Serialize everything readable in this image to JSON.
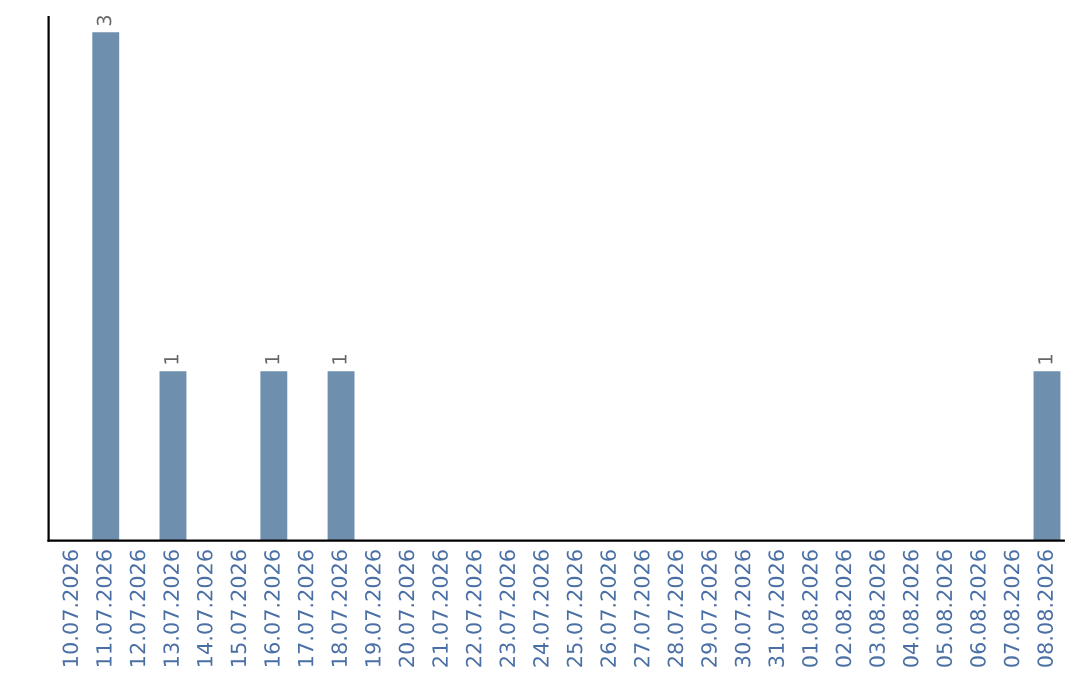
{
  "chart_data": {
    "type": "bar",
    "categories": [
      "10.07.2026",
      "11.07.2026",
      "12.07.2026",
      "13.07.2026",
      "14.07.2026",
      "15.07.2026",
      "16.07.2026",
      "17.07.2026",
      "18.07.2026",
      "19.07.2026",
      "20.07.2026",
      "21.07.2026",
      "22.07.2026",
      "23.07.2026",
      "24.07.2026",
      "25.07.2026",
      "26.07.2026",
      "27.07.2026",
      "28.07.2026",
      "29.07.2026",
      "30.07.2026",
      "31.07.2026",
      "01.08.2026",
      "02.08.2026",
      "03.08.2026",
      "04.08.2026",
      "05.08.2026",
      "06.08.2026",
      "07.08.2026",
      "08.08.2026"
    ],
    "values": [
      0,
      3,
      0,
      1,
      0,
      0,
      1,
      0,
      1,
      0,
      0,
      0,
      0,
      0,
      0,
      0,
      0,
      0,
      0,
      0,
      0,
      0,
      0,
      0,
      0,
      0,
      0,
      0,
      0,
      1
    ],
    "value_labels": [
      null,
      "3",
      null,
      "1",
      null,
      null,
      "1",
      null,
      "1",
      null,
      null,
      null,
      null,
      null,
      null,
      null,
      null,
      null,
      null,
      null,
      null,
      null,
      null,
      null,
      null,
      null,
      null,
      null,
      null,
      "1"
    ],
    "color": "#6e8fad",
    "grid": false,
    "legend": false
  }
}
